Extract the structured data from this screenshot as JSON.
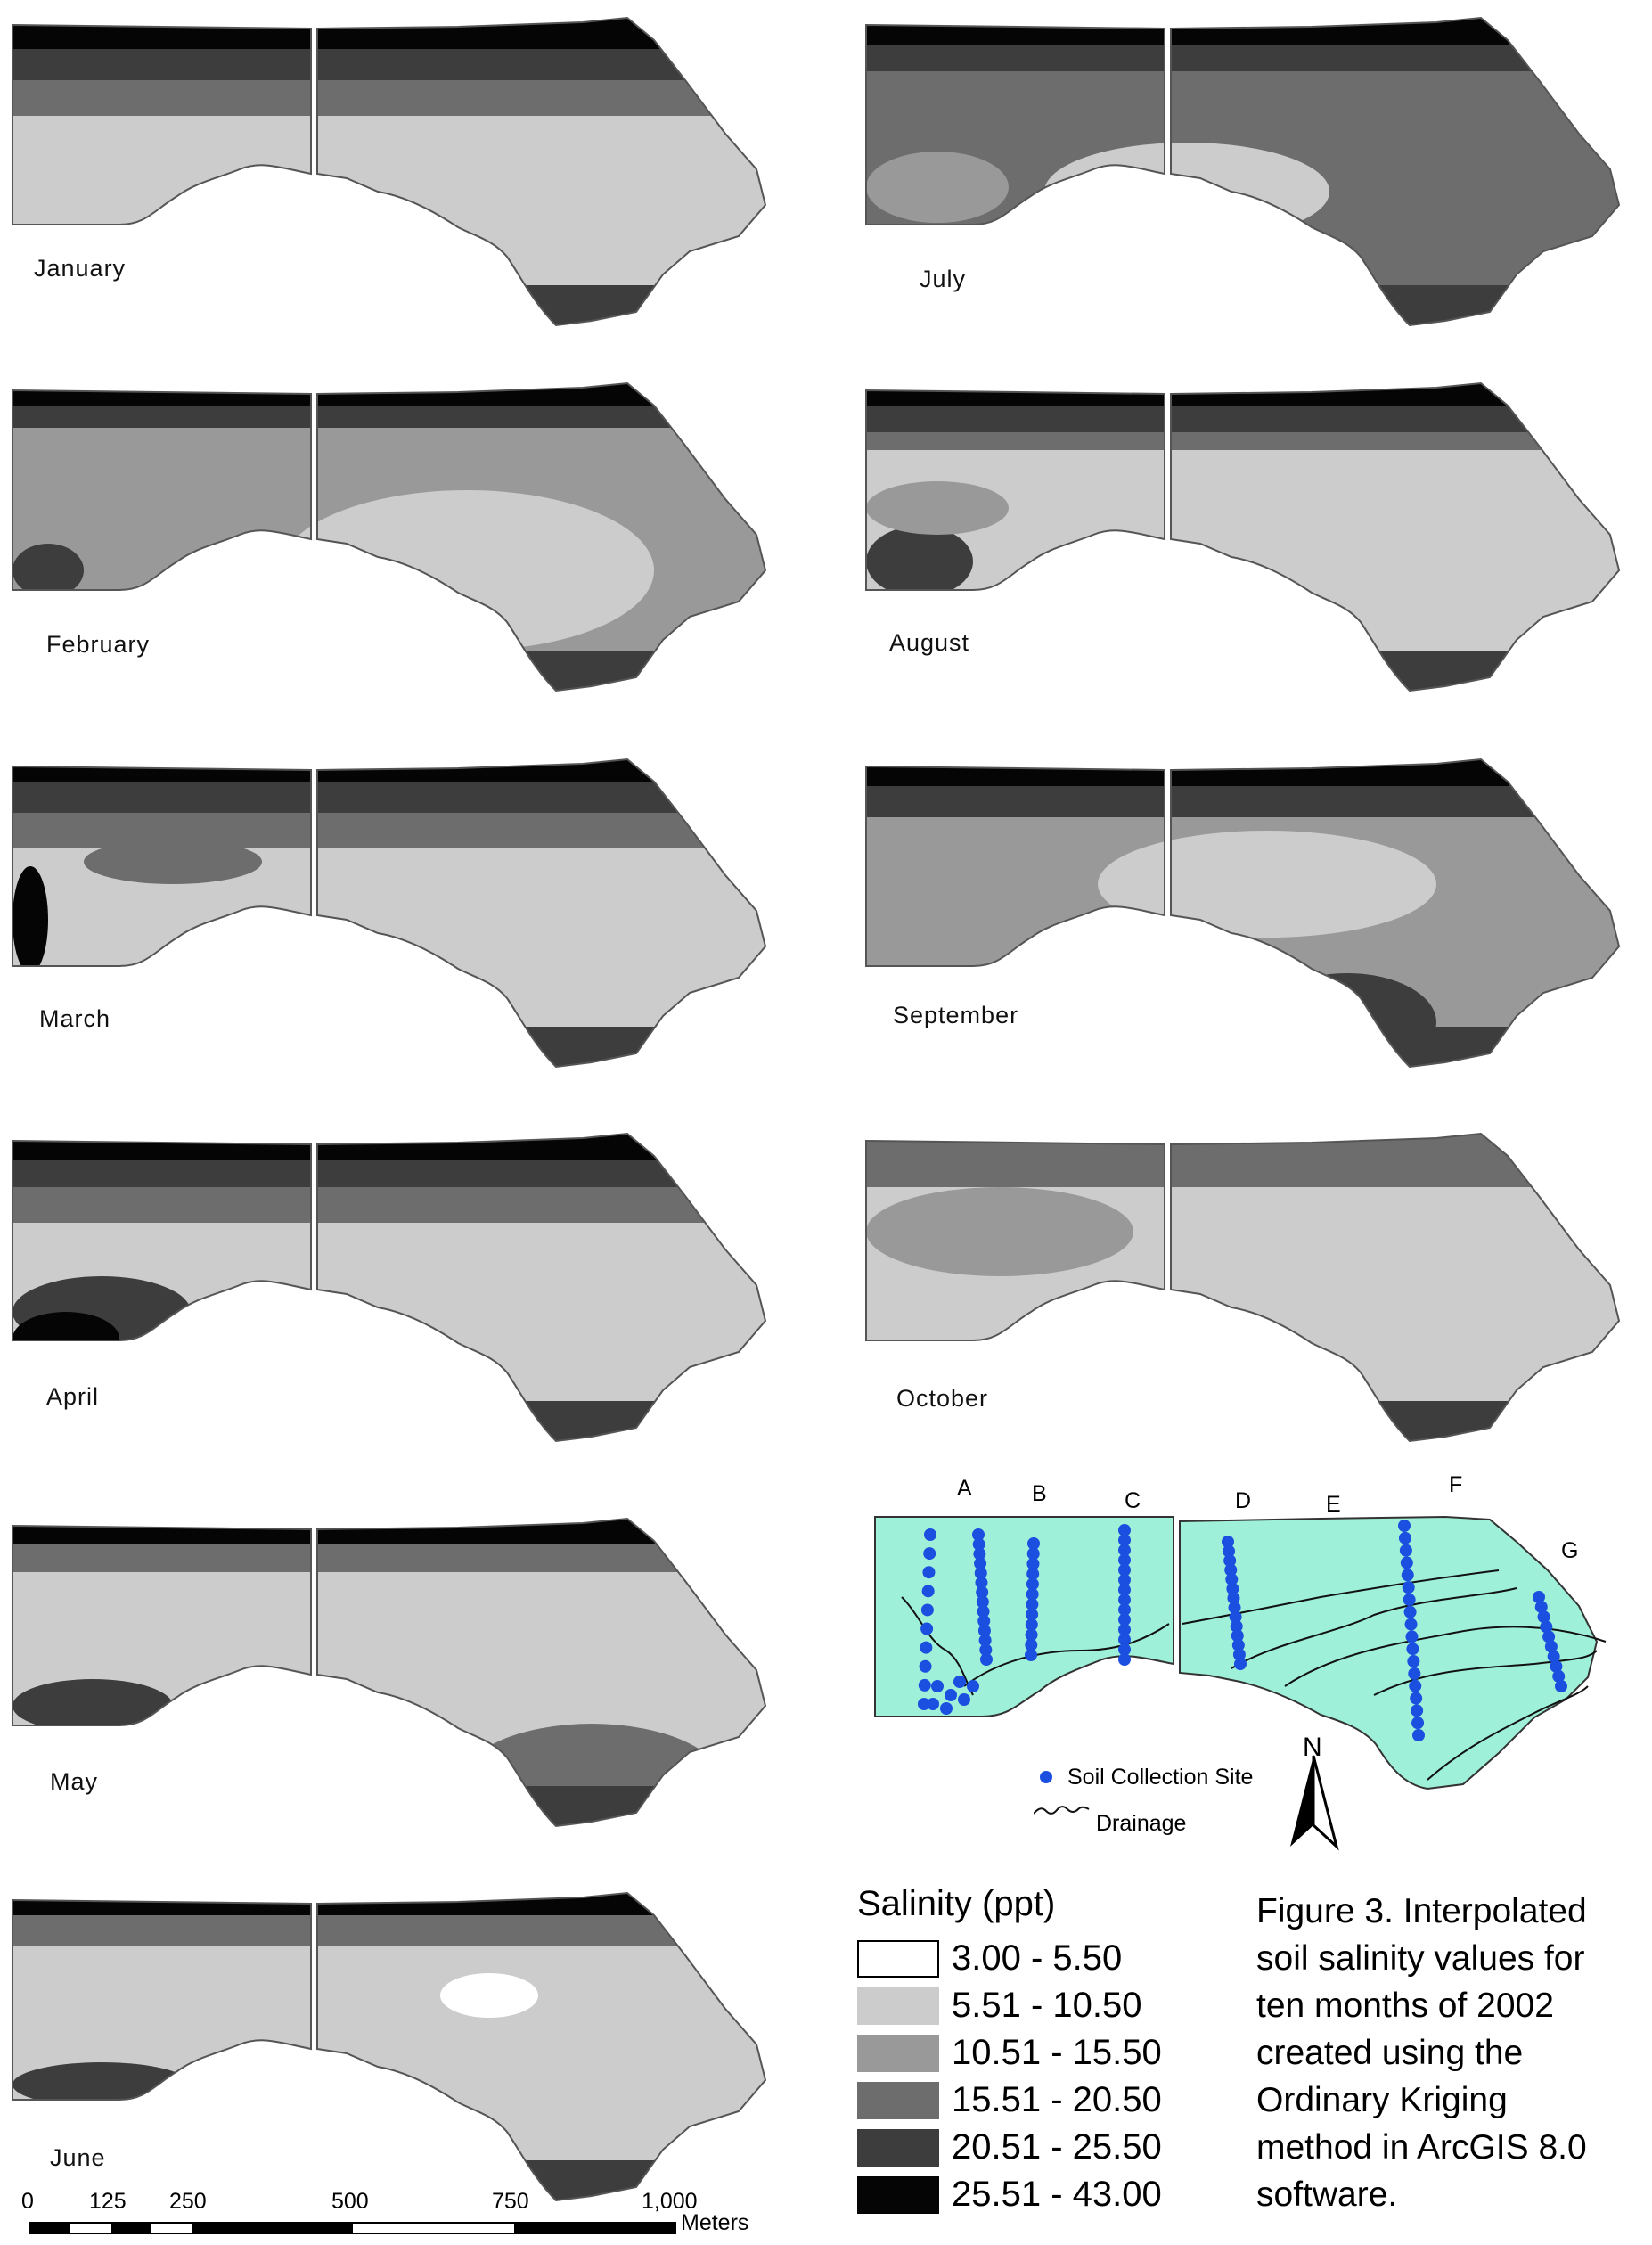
{
  "months": [
    "January",
    "July",
    "February",
    "August",
    "March",
    "September",
    "April",
    "October",
    "May",
    "June"
  ],
  "site_map": {
    "transect_labels": [
      "A",
      "B",
      "C",
      "D",
      "E",
      "F",
      "G"
    ],
    "legend_site": "Soil Collection Site",
    "legend_drainage": "Drainage",
    "north": "N",
    "colors": {
      "fill": "#9ff0d8",
      "site": "#1a4fe0",
      "drainage": "#111111"
    }
  },
  "legend": {
    "title": "Salinity (ppt)",
    "classes": [
      {
        "label": "3.00 - 5.50",
        "color": "#ffffff"
      },
      {
        "label": "5.51 - 10.50",
        "color": "#cccccc"
      },
      {
        "label": "10.51 - 15.50",
        "color": "#999999"
      },
      {
        "label": "15.51 - 20.50",
        "color": "#6d6d6d"
      },
      {
        "label": "20.51 - 25.50",
        "color": "#3d3d3d"
      },
      {
        "label": "25.51 - 43.00",
        "color": "#050505"
      }
    ]
  },
  "caption": {
    "lines": [
      "Figure 3. Interpolated",
      "soil salinity values for",
      "ten months of 2002",
      "created using the",
      "Ordinary Kriging",
      "method in ArcGIS 8.0",
      "software."
    ]
  },
  "scale_bar": {
    "ticks": [
      "0",
      "125",
      "250",
      "500",
      "750",
      "1,000"
    ],
    "unit": "Meters"
  }
}
